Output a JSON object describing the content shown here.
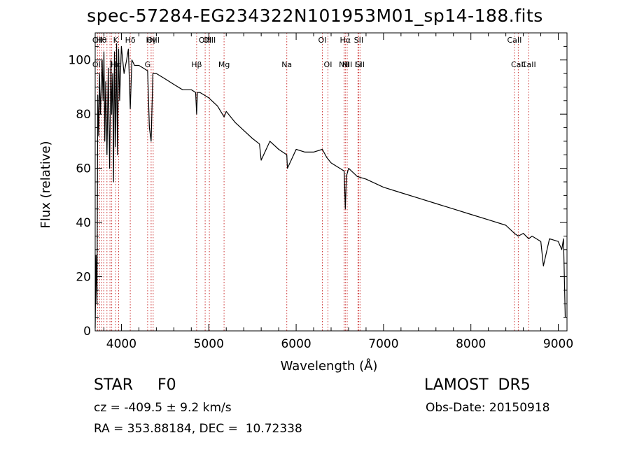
{
  "header": {
    "title": "spec-57284-EG234322N101953M01_sp14-188.fits"
  },
  "info": {
    "class_line": "STAR     F0",
    "survey": "LAMOST  DR5",
    "cz": "cz = -409.5 ± 9.2 km/s",
    "obs_date": "Obs-Date: 20150918",
    "radec": "RA = 353.88184, DEC =  10.72338"
  },
  "chart_data": {
    "type": "line",
    "title": "spec-57284-EG234322N101953M01_sp14-188.fits",
    "xlabel": "Wavelength (Å)",
    "ylabel": "Flux (relative)",
    "xlim": [
      3700,
      9100
    ],
    "ylim": [
      0,
      110
    ],
    "xticks": [
      4000,
      5000,
      6000,
      7000,
      8000,
      9000
    ],
    "yticks": [
      0,
      20,
      40,
      60,
      80,
      100
    ],
    "grid": false,
    "legend": "none",
    "line_color": "#000000",
    "marker_color": "#cc3333",
    "series": [
      {
        "x": [
          3700,
          3710,
          3720,
          3730,
          3740,
          3750,
          3760,
          3770,
          3780,
          3790,
          3800,
          3810,
          3820,
          3835,
          3850,
          3865,
          3880,
          3889,
          3900,
          3910,
          3920,
          3933,
          3945,
          3955,
          3968,
          3980,
          4000,
          4030,
          4060,
          4080,
          4101,
          4120,
          4150,
          4200,
          4250,
          4300,
          4320,
          4340,
          4360,
          4400,
          4500,
          4600,
          4700,
          4800,
          4850,
          4861,
          4870,
          4900,
          5000,
          5100,
          5175,
          5200,
          5300,
          5400,
          5500,
          5580,
          5600,
          5700,
          5800,
          5893,
          5900,
          6000,
          6100,
          6200,
          6300,
          6350,
          6400,
          6500,
          6550,
          6563,
          6575,
          6600,
          6700,
          6800,
          7000,
          7200,
          7400,
          7600,
          7800,
          8000,
          8200,
          8400,
          8498,
          8542,
          8600,
          8662,
          8700,
          8800,
          8830,
          8900,
          9000,
          9040,
          9060,
          9080
        ],
        "y": [
          1,
          28,
          10,
          87,
          72,
          95,
          80,
          90,
          100,
          85,
          103,
          70,
          92,
          65,
          97,
          60,
          100,
          80,
          95,
          55,
          103,
          68,
          106,
          65,
          104,
          85,
          105,
          95,
          100,
          104,
          82,
          100,
          98,
          98,
          97,
          96,
          75,
          70,
          95,
          95,
          93,
          91,
          89,
          89,
          88,
          80,
          88,
          88,
          86,
          83,
          79,
          81,
          77,
          74,
          71,
          69,
          63,
          70,
          67,
          65,
          60,
          67,
          66,
          66,
          67,
          64,
          62,
          60,
          59,
          45,
          57,
          60,
          57,
          56,
          53,
          51,
          49,
          47,
          45,
          43,
          41,
          39,
          36,
          35,
          36,
          34,
          35,
          33,
          24,
          34,
          33,
          30,
          34,
          5
        ]
      }
    ],
    "line_markers": [
      {
        "x": 3727,
        "top": "OII",
        "bottom": "OII"
      },
      {
        "x": 3751,
        "top": "",
        "bottom": ""
      },
      {
        "x": 3771,
        "top": "Hθ",
        "bottom": ""
      },
      {
        "x": 3798,
        "top": "",
        "bottom": ""
      },
      {
        "x": 3835,
        "top": "",
        "bottom": ""
      },
      {
        "x": 3869,
        "top": "",
        "bottom": ""
      },
      {
        "x": 3889,
        "top": "",
        "bottom": ""
      },
      {
        "x": 3934,
        "top": "K",
        "bottom": "Hε"
      },
      {
        "x": 3968,
        "top": "",
        "bottom": ""
      },
      {
        "x": 4101,
        "top": "Hδ",
        "bottom": ""
      },
      {
        "x": 4300,
        "top": "",
        "bottom": "G"
      },
      {
        "x": 4340,
        "top": "Hγ",
        "bottom": ""
      },
      {
        "x": 4363,
        "top": "OIII",
        "bottom": ""
      },
      {
        "x": 4861,
        "top": "",
        "bottom": "Hβ"
      },
      {
        "x": 4959,
        "top": "OIII",
        "bottom": ""
      },
      {
        "x": 5007,
        "top": "OIII",
        "bottom": ""
      },
      {
        "x": 5175,
        "top": "",
        "bottom": "Mg"
      },
      {
        "x": 5893,
        "top": "",
        "bottom": "Na"
      },
      {
        "x": 6300,
        "top": "OI",
        "bottom": ""
      },
      {
        "x": 6364,
        "top": "",
        "bottom": "OI"
      },
      {
        "x": 6548,
        "top": "",
        "bottom": "NII"
      },
      {
        "x": 6563,
        "top": "Hα",
        "bottom": ""
      },
      {
        "x": 6584,
        "top": "",
        "bottom": "NII"
      },
      {
        "x": 6708,
        "top": "",
        "bottom": "Li"
      },
      {
        "x": 6716,
        "top": "SII",
        "bottom": ""
      },
      {
        "x": 6731,
        "top": "",
        "bottom": "SII"
      },
      {
        "x": 8498,
        "top": "CaII",
        "bottom": ""
      },
      {
        "x": 8542,
        "top": "",
        "bottom": "CaII"
      },
      {
        "x": 8662,
        "top": "",
        "bottom": "CaII"
      }
    ]
  }
}
